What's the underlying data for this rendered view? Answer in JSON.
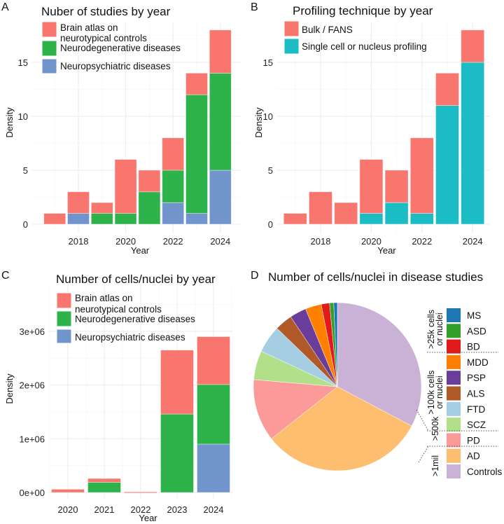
{
  "chart_data": [
    {
      "panel": "A",
      "type": "bar",
      "stacked": true,
      "title": "Nuber of studies by year",
      "xlabel": "Year",
      "ylabel": "Density",
      "x": [
        2017,
        2018,
        2019,
        2020,
        2021,
        2022,
        2023,
        2024
      ],
      "xticks": [
        "2018",
        "2020",
        "2022",
        "2024"
      ],
      "xtick_values": [
        2018,
        2020,
        2022,
        2024
      ],
      "yticks": [
        "0",
        "5",
        "10",
        "15"
      ],
      "ytick_values": [
        0,
        5,
        10,
        15
      ],
      "ylim": [
        0,
        18.5
      ],
      "legend_position": "top-left",
      "series": [
        {
          "name": "Neuropsychiatric diseases",
          "color": "#7294CD",
          "values": [
            0,
            1,
            0,
            0,
            0,
            2,
            1,
            5
          ]
        },
        {
          "name": "Neurodegenerative diseases",
          "color": "#2DB34A",
          "values": [
            0,
            0,
            1,
            1,
            3,
            3,
            11,
            9
          ]
        },
        {
          "name": "Brain atlas on neurotypical controls",
          "color": "#F8766D",
          "values": [
            1,
            2,
            1,
            5,
            2,
            3,
            2,
            4
          ]
        }
      ],
      "legend": [
        "Brain atlas on",
        "neurotypical controls",
        "Neurodegenerative diseases",
        "Neuropsychiatric diseases"
      ]
    },
    {
      "panel": "B",
      "type": "bar",
      "stacked": true,
      "title": "Profiling technique by year",
      "xlabel": "Year",
      "ylabel": "Density",
      "x": [
        2017,
        2018,
        2019,
        2020,
        2021,
        2022,
        2023,
        2024
      ],
      "xticks": [
        "2018",
        "2020",
        "2022",
        "2024"
      ],
      "xtick_values": [
        2018,
        2020,
        2022,
        2024
      ],
      "yticks": [
        "0",
        "5",
        "10",
        "15"
      ],
      "ytick_values": [
        0,
        5,
        10,
        15
      ],
      "ylim": [
        0,
        18.5
      ],
      "legend_position": "top-left",
      "series": [
        {
          "name": "Single cell or nucleus profiling",
          "color": "#1BBCC4",
          "values": [
            0,
            0,
            0,
            1,
            2,
            1,
            11,
            15
          ]
        },
        {
          "name": "Bulk / FANS",
          "color": "#F8766D",
          "values": [
            1,
            3,
            2,
            5,
            3,
            7,
            3,
            3
          ]
        }
      ],
      "legend": [
        "Bulk / FANS",
        "Single cell or nucleus profiling"
      ]
    },
    {
      "panel": "C",
      "type": "bar",
      "stacked": true,
      "title": "Number of cells/nuclei by year",
      "xlabel": "Year",
      "ylabel": "Density",
      "x": [
        2020,
        2021,
        2022,
        2023,
        2024
      ],
      "xticks": [
        "2020",
        "2021",
        "2022",
        "2023",
        "2024"
      ],
      "xtick_values": [
        2020,
        2021,
        2022,
        2023,
        2024
      ],
      "yticks": [
        "0e+00",
        "1e+06",
        "2e+06",
        "3e+06"
      ],
      "ytick_values": [
        0,
        1000000,
        2000000,
        3000000
      ],
      "ylim": [
        0,
        3600000
      ],
      "legend_position": "top-left",
      "series": [
        {
          "name": "Neuropsychiatric diseases",
          "color": "#7294CD",
          "values": [
            0,
            0,
            0,
            0,
            900000
          ]
        },
        {
          "name": "Neurodegenerative diseases",
          "color": "#2DB34A",
          "values": [
            0,
            190000,
            0,
            1460000,
            1110000
          ]
        },
        {
          "name": "Brain atlas on neurotypical controls",
          "color": "#F8766D",
          "values": [
            60000,
            70000,
            10000,
            1190000,
            890000
          ]
        }
      ],
      "legend": [
        "Brain atlas on",
        "neurotypical controls",
        "Neurodegenerative diseases",
        "Neuropsychiatric diseases"
      ]
    },
    {
      "panel": "D",
      "type": "pie",
      "title": "Number of cells/nuclei in disease studies",
      "unit": "percent",
      "slices": [
        {
          "name": "Controls",
          "value": 32.8,
          "color": "#CAB2D6"
        },
        {
          "name": "AD",
          "value": 31.7,
          "color": "#FDBF6F"
        },
        {
          "name": "PD",
          "value": 12.0,
          "color": "#FB9A99"
        },
        {
          "name": "SCZ",
          "value": 5.6,
          "color": "#B2DF8A"
        },
        {
          "name": "FTD",
          "value": 5.3,
          "color": "#A6CEE3"
        },
        {
          "name": "ALS",
          "value": 3.4,
          "color": "#B15928"
        },
        {
          "name": "PSP",
          "value": 3.2,
          "color": "#6A3D9A"
        },
        {
          "name": "MDD",
          "value": 3.1,
          "color": "#FF7F00"
        },
        {
          "name": "BD",
          "value": 1.6,
          "color": "#E31A1C"
        },
        {
          "name": "ASD",
          "value": 0.8,
          "color": "#33A02C"
        },
        {
          "name": "MS",
          "value": 0.7,
          "color": "#1F78B4"
        }
      ],
      "legend_order": [
        "MS",
        "ASD",
        "BD",
        "MDD",
        "PSP",
        "ALS",
        "FTD",
        "SCZ",
        "PD",
        "AD",
        "Controls"
      ],
      "legend_groups": [
        {
          "lines": [
            ">25k cells",
            "or nuclei"
          ],
          "members": [
            "MS",
            "ASD",
            "BD"
          ]
        },
        {
          "lines": [
            ">100k cells",
            "or nuclei"
          ],
          "members": [
            "MDD",
            "PSP",
            "ALS",
            "FTD",
            "SCZ"
          ]
        },
        {
          "lines": [
            ">500k"
          ],
          "members": [
            "PD"
          ]
        },
        {
          "lines": [
            ">1mil"
          ],
          "members": [
            "AD",
            "Controls"
          ]
        }
      ]
    }
  ],
  "panel_letters": [
    "A",
    "B",
    "C",
    "D"
  ]
}
